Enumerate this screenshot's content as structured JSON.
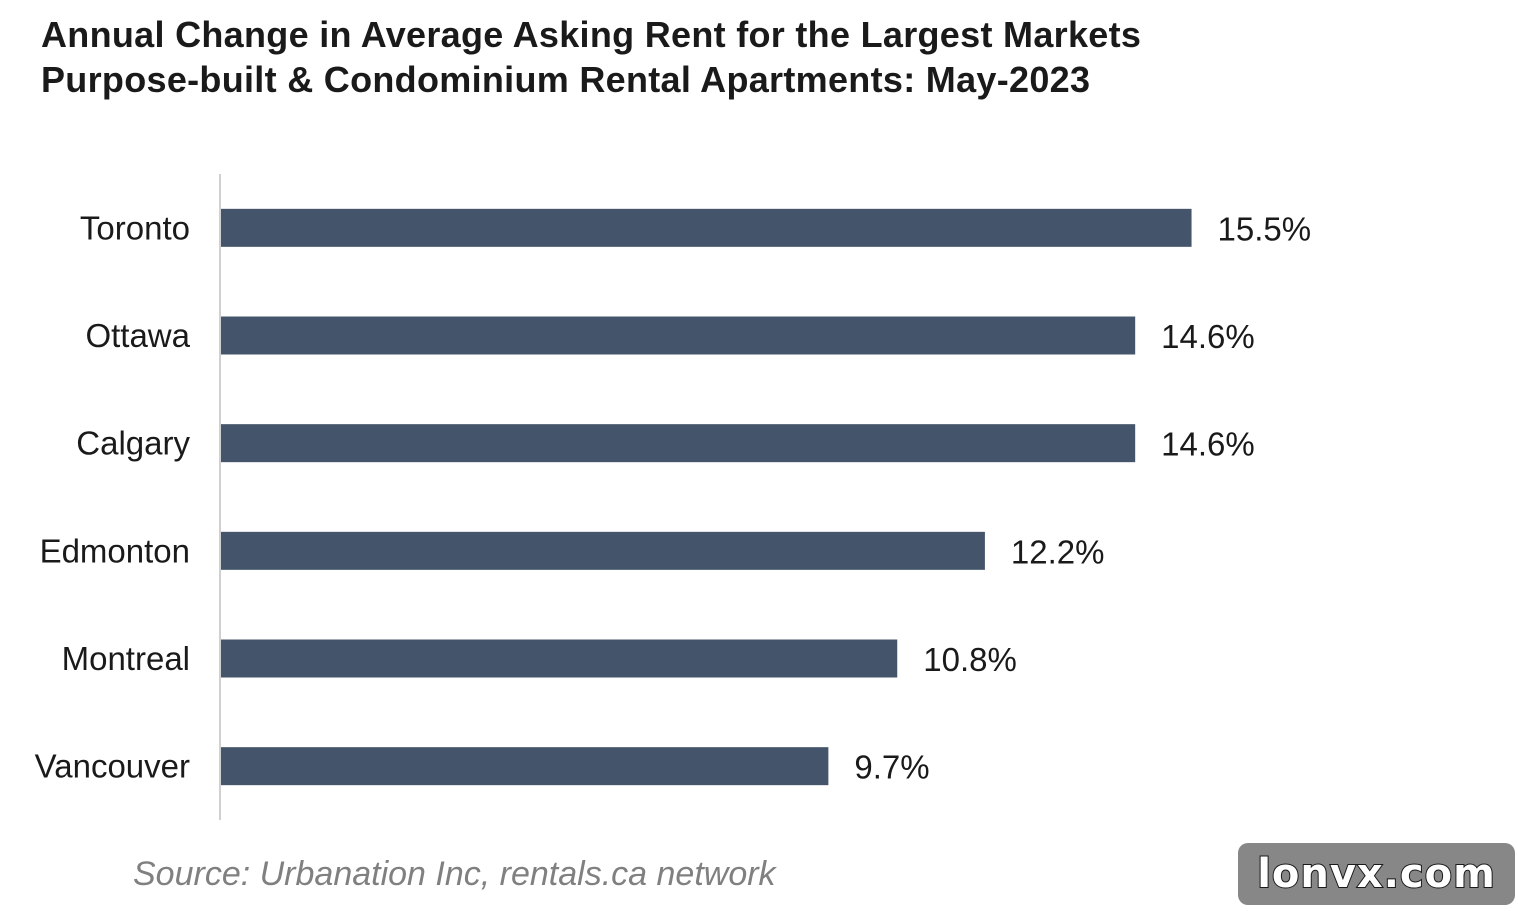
{
  "title": {
    "line1": "Annual Change in Average Asking Rent for the Largest Markets",
    "line2": "Purpose-built & Condominium Rental Apartments: May-2023"
  },
  "source": "Source: Urbanation Inc, rentals.ca network",
  "watermark": "lonvx.com",
  "colors": {
    "bar": "#44546a",
    "axis": "#d0d0d0",
    "label": "#1a1a1a"
  },
  "chart_data": {
    "type": "bar",
    "orientation": "horizontal",
    "categories": [
      "Toronto",
      "Ottawa",
      "Calgary",
      "Edmonton",
      "Montreal",
      "Vancouver"
    ],
    "values": [
      15.5,
      14.6,
      14.6,
      12.2,
      10.8,
      9.7
    ],
    "data_labels": [
      "15.5%",
      "14.6%",
      "14.6%",
      "12.2%",
      "10.8%",
      "9.7%"
    ],
    "unit": "%",
    "title": "Annual Change in Average Asking Rent for the Largest Markets",
    "subtitle": "Purpose-built & Condominium Rental Apartments: May-2023",
    "xlabel": "",
    "ylabel": "",
    "xlim": [
      0,
      19.5
    ],
    "grid": false,
    "legend": "none"
  }
}
